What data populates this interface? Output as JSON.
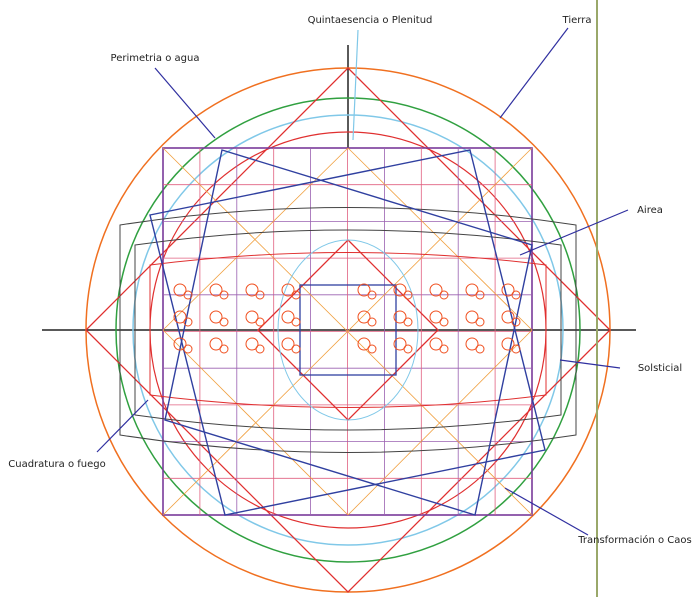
{
  "labels": {
    "quintaesencia": "Quintaesencia o Plenitud",
    "tierra": "Tierra",
    "perimetria": "Perimetria o agua",
    "airea": "Airea",
    "solsticial": "Solsticial",
    "cuadratura": "Cuadratura o fuego",
    "transformacion": "Transformación o Caos"
  }
}
